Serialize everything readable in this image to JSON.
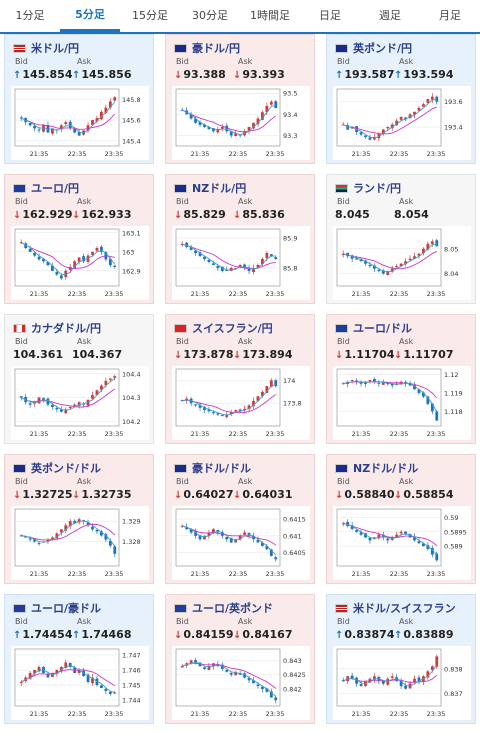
{
  "tabs": [
    "1分足",
    "5分足",
    "15分足",
    "30分足",
    "1時間足",
    "日足",
    "週足",
    "月足"
  ],
  "active_tab": 1,
  "bid_label": "Bid",
  "ask_label": "Ask",
  "up_arrow": "↑",
  "down_arrow": "↓",
  "colors": {
    "up_bg": "#e7f1fb",
    "down_bg": "#fbeaea",
    "up": "#1e73be",
    "down": "#d23b3b",
    "ma": "#cc33cc"
  },
  "pairs": [
    {
      "name": "米ドル/円",
      "flag": "us",
      "dir": "up",
      "bid": "145.854",
      "ask": "145.856",
      "bid_arrow": "up",
      "ask_arrow": "up",
      "chart_data": {
        "type": "candlestick",
        "x_ticks": [
          "21:35",
          "22:35",
          "23:35"
        ],
        "y_ticks": [
          "145.8",
          "145.6",
          "145.4"
        ],
        "ylim": [
          145.35,
          145.9
        ],
        "trend": [
          145.62,
          145.58,
          145.55,
          145.52,
          145.5,
          145.55,
          145.48,
          145.52,
          145.5,
          145.55,
          145.58,
          145.52,
          145.48,
          145.45,
          145.5,
          145.55,
          145.6,
          145.62,
          145.68,
          145.72,
          145.78,
          145.82
        ]
      }
    },
    {
      "name": "豪ドル/円",
      "flag": "au",
      "dir": "down",
      "bid": "93.388",
      "ask": "93.393",
      "bid_arrow": "down",
      "ask_arrow": "down",
      "chart_data": {
        "type": "candlestick",
        "x_ticks": [
          "21:35",
          "22:35",
          "23:35"
        ],
        "y_ticks": [
          "93.5",
          "93.4",
          "93.3"
        ],
        "ylim": [
          93.25,
          93.52
        ],
        "trend": [
          93.42,
          93.4,
          93.38,
          93.36,
          93.35,
          93.34,
          93.33,
          93.32,
          93.33,
          93.34,
          93.32,
          93.3,
          93.31,
          93.3,
          93.32,
          93.34,
          93.36,
          93.38,
          93.41,
          93.44,
          93.46,
          93.43
        ]
      }
    },
    {
      "name": "英ポンド/円",
      "flag": "uk",
      "dir": "up",
      "bid": "193.587",
      "ask": "193.594",
      "bid_arrow": "up",
      "ask_arrow": "up",
      "chart_data": {
        "type": "candlestick",
        "x_ticks": [
          "21:35",
          "22:35",
          "23:35"
        ],
        "y_ticks": [
          "193.6",
          "193.4"
        ],
        "ylim": [
          193.25,
          193.7
        ],
        "trend": [
          193.42,
          193.38,
          193.4,
          193.36,
          193.34,
          193.32,
          193.3,
          193.32,
          193.35,
          193.38,
          193.4,
          193.42,
          193.45,
          193.48,
          193.46,
          193.5,
          193.52,
          193.55,
          193.58,
          193.62,
          193.64,
          193.6
        ]
      }
    },
    {
      "name": "ユーロ/円",
      "flag": "eu",
      "dir": "down",
      "bid": "162.929",
      "ask": "162.933",
      "bid_arrow": "down",
      "ask_arrow": "down",
      "chart_data": {
        "type": "candlestick",
        "x_ticks": [
          "21:35",
          "22:35",
          "23:35"
        ],
        "y_ticks": [
          "163.1",
          "163",
          "162.9"
        ],
        "ylim": [
          162.82,
          163.12
        ],
        "trend": [
          163.05,
          163.02,
          163.0,
          162.98,
          162.96,
          162.95,
          162.93,
          162.9,
          162.88,
          162.86,
          162.9,
          162.92,
          162.95,
          162.97,
          162.95,
          162.98,
          163.0,
          163.02,
          163.0,
          162.96,
          162.93,
          162.92
        ]
      }
    },
    {
      "name": "NZドル/円",
      "flag": "nz",
      "dir": "down",
      "bid": "85.829",
      "ask": "85.836",
      "bid_arrow": "down",
      "ask_arrow": "down",
      "chart_data": {
        "type": "candlestick",
        "x_ticks": [
          "21:35",
          "22:35",
          "23:35"
        ],
        "y_ticks": [
          "85.9",
          "85.8"
        ],
        "ylim": [
          85.74,
          85.93
        ],
        "trend": [
          85.88,
          85.87,
          85.86,
          85.85,
          85.84,
          85.83,
          85.82,
          85.81,
          85.8,
          85.79,
          85.79,
          85.8,
          85.8,
          85.81,
          85.8,
          85.79,
          85.8,
          85.81,
          85.83,
          85.85,
          85.84,
          85.83
        ]
      }
    },
    {
      "name": "ランド/円",
      "flag": "za",
      "dir": "flat",
      "bid": "8.045",
      "ask": "8.054",
      "bid_arrow": "",
      "ask_arrow": "",
      "chart_data": {
        "type": "candlestick",
        "x_ticks": [
          "21:35",
          "22:35",
          "23:35"
        ],
        "y_ticks": [
          "8.05",
          "8.04"
        ],
        "ylim": [
          8.035,
          8.058
        ],
        "trend": [
          8.048,
          8.047,
          8.046,
          8.046,
          8.045,
          8.044,
          8.043,
          8.042,
          8.041,
          8.04,
          8.041,
          8.042,
          8.043,
          8.044,
          8.045,
          8.046,
          8.047,
          8.048,
          8.05,
          8.052,
          8.053,
          8.051
        ]
      }
    },
    {
      "name": "カナダドル/円",
      "flag": "ca",
      "dir": "flat",
      "bid": "104.361",
      "ask": "104.367",
      "bid_arrow": "",
      "ask_arrow": "",
      "chart_data": {
        "type": "candlestick",
        "x_ticks": [
          "21:35",
          "22:35",
          "23:35"
        ],
        "y_ticks": [
          "104.4",
          "104.3",
          "104.2"
        ],
        "ylim": [
          104.18,
          104.42
        ],
        "trend": [
          104.3,
          104.28,
          104.27,
          104.28,
          104.3,
          104.29,
          104.27,
          104.26,
          104.25,
          104.24,
          104.25,
          104.26,
          104.27,
          104.28,
          104.27,
          104.29,
          104.31,
          104.33,
          104.35,
          104.37,
          104.38,
          104.39
        ]
      }
    },
    {
      "name": "スイスフラン/円",
      "flag": "ch",
      "dir": "down",
      "bid": "173.878",
      "ask": "173.894",
      "bid_arrow": "down",
      "ask_arrow": "down",
      "chart_data": {
        "type": "candlestick",
        "x_ticks": [
          "21:35",
          "22:35",
          "23:35"
        ],
        "y_ticks": [
          "174",
          "173.8"
        ],
        "ylim": [
          173.6,
          174.1
        ],
        "trend": [
          173.82,
          173.84,
          173.8,
          173.78,
          173.76,
          173.74,
          173.73,
          173.72,
          173.7,
          173.69,
          173.7,
          173.72,
          173.74,
          173.73,
          173.75,
          173.78,
          173.82,
          173.86,
          173.9,
          173.95,
          174.0,
          173.95
        ]
      }
    },
    {
      "name": "ユーロ/ドル",
      "flag": "eu",
      "dir": "down",
      "bid": "1.11704",
      "ask": "1.11707",
      "bid_arrow": "down",
      "ask_arrow": "down",
      "chart_data": {
        "type": "candlestick",
        "x_ticks": [
          "21:35",
          "22:35",
          "23:35"
        ],
        "y_ticks": [
          "1.12",
          "1.119",
          "1.118"
        ],
        "ylim": [
          1.1172,
          1.1203
        ],
        "trend": [
          1.1195,
          1.1196,
          1.1197,
          1.1196,
          1.1195,
          1.1196,
          1.1197,
          1.1196,
          1.1195,
          1.1196,
          1.1195,
          1.1194,
          1.1195,
          1.1196,
          1.1195,
          1.1194,
          1.1192,
          1.119,
          1.1188,
          1.1184,
          1.118,
          1.1175
        ]
      }
    },
    {
      "name": "英ポンド/ドル",
      "flag": "uk",
      "dir": "down",
      "bid": "1.32725",
      "ask": "1.32735",
      "bid_arrow": "down",
      "ask_arrow": "down",
      "chart_data": {
        "type": "candlestick",
        "x_ticks": [
          "21:35",
          "22:35",
          "23:35"
        ],
        "y_ticks": [
          "1.329",
          "1.328"
        ],
        "ylim": [
          1.3268,
          1.3296
        ],
        "trend": [
          1.3283,
          1.3282,
          1.3281,
          1.328,
          1.3279,
          1.328,
          1.3281,
          1.3282,
          1.3284,
          1.3286,
          1.3288,
          1.329,
          1.3289,
          1.3291,
          1.329,
          1.3288,
          1.3286,
          1.3285,
          1.3283,
          1.3281,
          1.3278,
          1.3274
        ]
      }
    },
    {
      "name": "豪ドル/ドル",
      "flag": "au",
      "dir": "down",
      "bid": "0.64027",
      "ask": "0.64031",
      "bid_arrow": "down",
      "ask_arrow": "down",
      "chart_data": {
        "type": "candlestick",
        "x_ticks": [
          "21:35",
          "22:35",
          "23:35"
        ],
        "y_ticks": [
          "0.6415",
          "0.641",
          "0.6405"
        ],
        "ylim": [
          0.6401,
          0.6418
        ],
        "trend": [
          0.6413,
          0.6412,
          0.6411,
          0.641,
          0.6409,
          0.641,
          0.6411,
          0.6412,
          0.6411,
          0.641,
          0.6409,
          0.6408,
          0.6409,
          0.641,
          0.6411,
          0.641,
          0.6409,
          0.6408,
          0.6407,
          0.6406,
          0.6404,
          0.6403
        ]
      }
    },
    {
      "name": "NZドル/ドル",
      "flag": "nz",
      "dir": "down",
      "bid": "0.58840",
      "ask": "0.58854",
      "bid_arrow": "down",
      "ask_arrow": "down",
      "chart_data": {
        "type": "candlestick",
        "x_ticks": [
          "21:35",
          "22:35",
          "23:35"
        ],
        "y_ticks": [
          "0.59",
          "0.5895",
          "0.589"
        ],
        "ylim": [
          0.5883,
          0.5903
        ],
        "trend": [
          0.5898,
          0.5897,
          0.5896,
          0.5895,
          0.5894,
          0.5893,
          0.5892,
          0.5893,
          0.5894,
          0.5893,
          0.5892,
          0.5893,
          0.5894,
          0.5895,
          0.5894,
          0.5893,
          0.5892,
          0.5891,
          0.589,
          0.5889,
          0.5887,
          0.5885
        ]
      }
    },
    {
      "name": "ユーロ/豪ドル",
      "flag": "eu",
      "dir": "up",
      "bid": "1.74454",
      "ask": "1.74468",
      "bid_arrow": "up",
      "ask_arrow": "up",
      "chart_data": {
        "type": "candlestick",
        "x_ticks": [
          "21:35",
          "22:35",
          "23:35"
        ],
        "y_ticks": [
          "1.747",
          "1.746",
          "1.745",
          "1.744"
        ],
        "ylim": [
          1.7436,
          1.7474
        ],
        "trend": [
          1.7452,
          1.7455,
          1.7458,
          1.746,
          1.7462,
          1.7458,
          1.7455,
          1.7458,
          1.746,
          1.7462,
          1.7465,
          1.7462,
          1.7458,
          1.746,
          1.7456,
          1.7452,
          1.7455,
          1.745,
          1.7448,
          1.7446,
          1.7444,
          1.7445
        ]
      }
    },
    {
      "name": "ユーロ/英ポンド",
      "flag": "eu",
      "dir": "down",
      "bid": "0.84159",
      "ask": "0.84167",
      "bid_arrow": "down",
      "ask_arrow": "down",
      "chart_data": {
        "type": "candlestick",
        "x_ticks": [
          "21:35",
          "22:35",
          "23:35"
        ],
        "y_ticks": [
          "0.843",
          "0.8425",
          "0.842"
        ],
        "ylim": [
          0.8414,
          0.8434
        ],
        "trend": [
          0.8428,
          0.8429,
          0.843,
          0.8429,
          0.8428,
          0.8427,
          0.8428,
          0.8429,
          0.8428,
          0.8427,
          0.8426,
          0.8425,
          0.8426,
          0.8425,
          0.8424,
          0.8423,
          0.8422,
          0.8421,
          0.842,
          0.8419,
          0.8417,
          0.8416
        ]
      }
    },
    {
      "name": "米ドル/スイスフラン",
      "flag": "us",
      "dir": "up",
      "bid": "0.83874",
      "ask": "0.83889",
      "bid_arrow": "up",
      "ask_arrow": "up",
      "chart_data": {
        "type": "candlestick",
        "x_ticks": [
          "21:35",
          "22:35",
          "23:35"
        ],
        "y_ticks": [
          "0.838",
          "0.837"
        ],
        "ylim": [
          0.8365,
          0.8388
        ],
        "trend": [
          0.8375,
          0.8377,
          0.8376,
          0.8374,
          0.8373,
          0.8375,
          0.8376,
          0.8377,
          0.8375,
          0.8374,
          0.8376,
          0.8377,
          0.8375,
          0.8373,
          0.8372,
          0.8374,
          0.8376,
          0.8375,
          0.8377,
          0.8379,
          0.8381,
          0.8385
        ]
      }
    }
  ]
}
